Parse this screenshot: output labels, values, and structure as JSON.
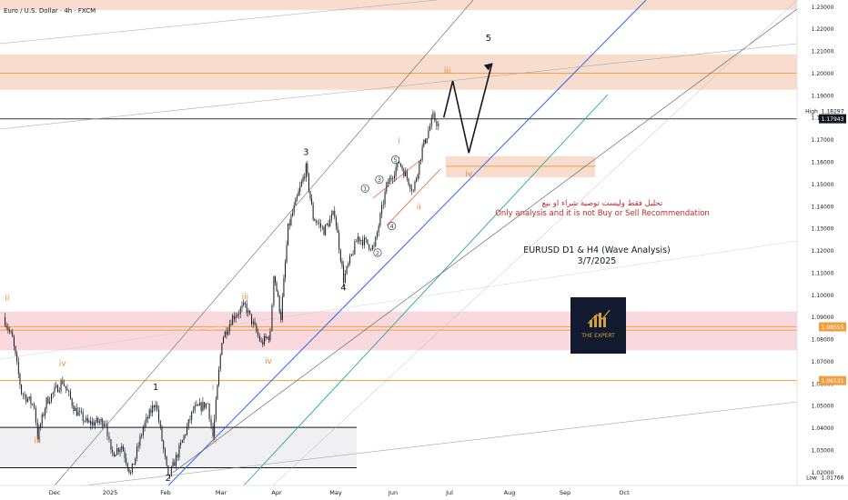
{
  "header": {
    "symbol_title": "Euro / U.S. Dollar · 4h · FXCM"
  },
  "annotation": {
    "arabic": "تحليل فقط وليست توصية شراء او بيع",
    "english": "Only analysis and it is not Buy or Sell Recommendation",
    "title_line1": "EURUSD D1 & H4 (Wave Analysis)",
    "title_line2": "3/7/2025"
  },
  "logo": {
    "text": "THE EXPERT"
  },
  "colors": {
    "candle": "#131722",
    "label_dark": "#131722",
    "label_orange": "#e8863a",
    "supply_zone": "#f4c9b3",
    "demand_zone": "#f6c9cf",
    "blue_channel": "#2962ff",
    "teal_channel": "#26a69a",
    "red_text": "#c62828"
  },
  "chart_data": {
    "type": "candlestick",
    "symbol": "EURUSD",
    "timeframe": "4h",
    "ylim": [
      1.014,
      1.233
    ],
    "y_ticks": [
      "1.23000",
      "1.22000",
      "1.21000",
      "1.20000",
      "1.19000",
      "1.18000",
      "1.17000",
      "1.16000",
      "1.15000",
      "1.14000",
      "1.13000",
      "1.12000",
      "1.11000",
      "1.10000",
      "1.09000",
      "1.08000",
      "1.07000",
      "1.06000",
      "1.05000",
      "1.04000",
      "1.03000",
      "1.02000"
    ],
    "x_ticks": [
      "Dec",
      "2025",
      "Feb",
      "Mar",
      "Apr",
      "May",
      "Jun",
      "Jul",
      "Aug",
      "Sep",
      "Oct"
    ],
    "price_labels": [
      {
        "name": "High",
        "value": "1.18297",
        "y": 1.18297,
        "style": "plain"
      },
      {
        "name": "",
        "value": "1.17943",
        "y": 1.17943,
        "style": "dark"
      },
      {
        "name": "",
        "value": "1.08555",
        "y": 1.08555,
        "style": "orange"
      },
      {
        "name": "",
        "value": "1.06131",
        "y": 1.06131,
        "style": "orange"
      },
      {
        "name": "Low",
        "value": "1.01766",
        "y": 1.01766,
        "style": "plain"
      }
    ],
    "zones": [
      {
        "kind": "supply",
        "from": 1.1925,
        "to": 1.2085
      },
      {
        "kind": "resistance",
        "from": 1.2285,
        "to": 1.2335
      },
      {
        "kind": "demand",
        "from": 1.075,
        "to": 1.0925
      },
      {
        "kind": "target-iv",
        "from": 1.153,
        "to": 1.1625
      }
    ],
    "horizontal_levels": [
      1.2,
      1.1794,
      1.0856,
      1.0841,
      1.0613,
      1.0402,
      1.022,
      1.158
    ],
    "wave_labels": [
      {
        "text": "ii",
        "x": "2024-11-05",
        "y": 1.0975,
        "color": "orange"
      },
      {
        "text": "iii",
        "x": "2024-11-22",
        "y": 1.033,
        "color": "orange"
      },
      {
        "text": "iv",
        "x": "2024-12-06",
        "y": 1.068,
        "color": "orange"
      },
      {
        "text": "1",
        "x": "2025-01-27",
        "y": 1.057,
        "color": "dark"
      },
      {
        "text": "2",
        "x": "2025-02-03",
        "y": 1.016,
        "color": "dark"
      },
      {
        "text": "i",
        "x": "2025-02-28",
        "y": 1.057,
        "color": "orange"
      },
      {
        "text": "ii",
        "x": "2025-03-01",
        "y": 1.033,
        "color": "orange"
      },
      {
        "text": "iii",
        "x": "2025-03-18",
        "y": 1.098,
        "color": "orange"
      },
      {
        "text": "iv",
        "x": "2025-03-31",
        "y": 1.069,
        "color": "orange"
      },
      {
        "text": "3",
        "x": "2025-04-21",
        "y": 1.163,
        "color": "dark"
      },
      {
        "text": "4",
        "x": "2025-05-12",
        "y": 1.102,
        "color": "dark"
      },
      {
        "text": "i",
        "x": "2025-06-12",
        "y": 1.1685,
        "color": "orange"
      },
      {
        "text": "ii",
        "x": "2025-06-23",
        "y": 1.1385,
        "color": "orange"
      },
      {
        "text": "iii",
        "x": "2025-07-09",
        "y": 1.2,
        "color": "orange"
      },
      {
        "text": "iv",
        "x": "2025-07-21",
        "y": 1.1535,
        "color": "orange"
      },
      {
        "text": "5",
        "x": "2025-08-01",
        "y": 1.2145,
        "color": "dark"
      }
    ],
    "circled_labels": [
      {
        "text": "1",
        "x": "2025-05-24",
        "y": 1.148
      },
      {
        "text": "2",
        "x": "2025-05-31",
        "y": 1.119
      },
      {
        "text": "3",
        "x": "2025-06-01",
        "y": 1.152
      },
      {
        "text": "4",
        "x": "2025-06-08",
        "y": 1.131
      },
      {
        "text": "5",
        "x": "2025-06-10",
        "y": 1.161
      }
    ],
    "projection": [
      {
        "x": "2025-07-07",
        "y": 1.18
      },
      {
        "x": "2025-07-12",
        "y": 1.1965
      },
      {
        "x": "2025-07-21",
        "y": 1.164
      },
      {
        "x": "2025-08-03",
        "y": 1.2045
      }
    ],
    "price_path": [
      {
        "x": "2024-11-03",
        "y": 1.09
      },
      {
        "x": "2024-11-08",
        "y": 1.08
      },
      {
        "x": "2024-11-13",
        "y": 1.056
      },
      {
        "x": "2024-11-20",
        "y": 1.05
      },
      {
        "x": "2024-11-22",
        "y": 1.036
      },
      {
        "x": "2024-11-27",
        "y": 1.052
      },
      {
        "x": "2024-12-06",
        "y": 1.061
      },
      {
        "x": "2024-12-13",
        "y": 1.048
      },
      {
        "x": "2024-12-20",
        "y": 1.042
      },
      {
        "x": "2024-12-30",
        "y": 1.043
      },
      {
        "x": "2025-01-02",
        "y": 1.028
      },
      {
        "x": "2025-01-08",
        "y": 1.032
      },
      {
        "x": "2025-01-13",
        "y": 1.019
      },
      {
        "x": "2025-01-20",
        "y": 1.04
      },
      {
        "x": "2025-01-27",
        "y": 1.052
      },
      {
        "x": "2025-02-03",
        "y": 1.017
      },
      {
        "x": "2025-02-10",
        "y": 1.032
      },
      {
        "x": "2025-02-17",
        "y": 1.048
      },
      {
        "x": "2025-02-25",
        "y": 1.051
      },
      {
        "x": "2025-02-28",
        "y": 1.036
      },
      {
        "x": "2025-03-05",
        "y": 1.08
      },
      {
        "x": "2025-03-11",
        "y": 1.09
      },
      {
        "x": "2025-03-18",
        "y": 1.095
      },
      {
        "x": "2025-03-27",
        "y": 1.078
      },
      {
        "x": "2025-04-01",
        "y": 1.082
      },
      {
        "x": "2025-04-03",
        "y": 1.11
      },
      {
        "x": "2025-04-07",
        "y": 1.09
      },
      {
        "x": "2025-04-11",
        "y": 1.13
      },
      {
        "x": "2025-04-21",
        "y": 1.157
      },
      {
        "x": "2025-04-25",
        "y": 1.135
      },
      {
        "x": "2025-05-01",
        "y": 1.129
      },
      {
        "x": "2025-05-07",
        "y": 1.137
      },
      {
        "x": "2025-05-12",
        "y": 1.107
      },
      {
        "x": "2025-05-20",
        "y": 1.126
      },
      {
        "x": "2025-05-29",
        "y": 1.121
      },
      {
        "x": "2025-06-05",
        "y": 1.149
      },
      {
        "x": "2025-06-12",
        "y": 1.16
      },
      {
        "x": "2025-06-20",
        "y": 1.147
      },
      {
        "x": "2025-06-25",
        "y": 1.166
      },
      {
        "x": "2025-07-01",
        "y": 1.18
      },
      {
        "x": "2025-07-04",
        "y": 1.1765
      }
    ]
  }
}
